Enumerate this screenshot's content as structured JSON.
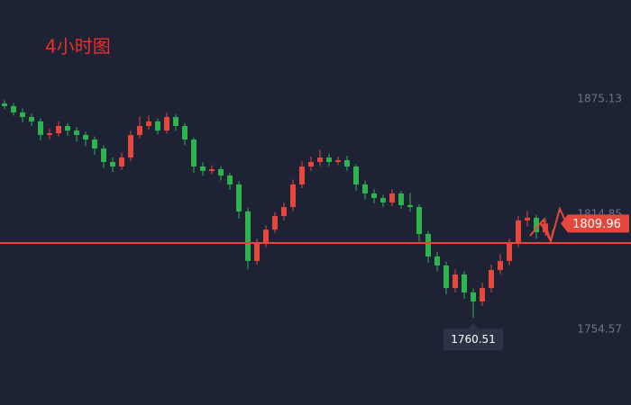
{
  "chart_data": {
    "type": "candlestick",
    "title": "4小时图",
    "open": [
      1872.8,
      1871.4,
      1868.1,
      1865.7,
      1863.4,
      1856.3,
      1857.2,
      1861.0,
      1858.6,
      1856.3,
      1853.9,
      1849.2,
      1842.2,
      1839.8,
      1844.5,
      1856.3,
      1861.0,
      1863.4,
      1858.6,
      1865.7,
      1861.0,
      1853.9,
      1839.8,
      1837.5,
      1838.4,
      1835.1,
      1830.4,
      1816.3,
      1790.4,
      1799.8,
      1806.8,
      1813.9,
      1818.6,
      1830.4,
      1839.8,
      1842.2,
      1844.5,
      1842.2,
      1843.1,
      1839.8,
      1830.4,
      1825.7,
      1823.3,
      1821.0,
      1825.7,
      1819.6,
      1818.6,
      1804.5,
      1792.7,
      1788.0,
      1776.2,
      1783.3,
      1773.9,
      1769.2,
      1776.2,
      1785.6,
      1790.4,
      1799.8,
      1811.6,
      1813.0,
      1805.4
    ],
    "high": [
      1874.5,
      1873.0,
      1870.2,
      1867.5,
      1865.0,
      1859.5,
      1863.5,
      1862.5,
      1860.5,
      1858.0,
      1855.5,
      1851.0,
      1844.5,
      1847.0,
      1858.5,
      1866.0,
      1866.5,
      1865.0,
      1868.0,
      1867.0,
      1862.5,
      1855.0,
      1842.0,
      1840.5,
      1840.0,
      1836.5,
      1832.0,
      1818.0,
      1802.0,
      1809.0,
      1816.0,
      1821.0,
      1833.0,
      1842.5,
      1845.0,
      1848.5,
      1846.5,
      1845.0,
      1845.5,
      1841.0,
      1832.5,
      1828.0,
      1825.0,
      1828.0,
      1827.0,
      1826.0,
      1820.0,
      1806.0,
      1795.0,
      1790.0,
      1786.0,
      1785.0,
      1776.0,
      1779.0,
      1788.5,
      1794.0,
      1802.0,
      1814.0,
      1816.5,
      1814.5,
      1813.0
    ],
    "low": [
      1869.8,
      1866.5,
      1863.0,
      1861.0,
      1853.5,
      1854.0,
      1855.5,
      1856.0,
      1853.0,
      1850.5,
      1846.0,
      1839.0,
      1837.0,
      1838.0,
      1842.5,
      1854.5,
      1859.0,
      1856.5,
      1857.0,
      1858.5,
      1851.0,
      1836.5,
      1835.0,
      1836.0,
      1832.5,
      1827.5,
      1812.5,
      1786.0,
      1788.5,
      1797.5,
      1805.0,
      1811.5,
      1816.5,
      1828.5,
      1837.5,
      1840.0,
      1840.0,
      1840.5,
      1837.5,
      1827.0,
      1822.5,
      1820.5,
      1818.5,
      1819.0,
      1817.5,
      1816.0,
      1800.5,
      1789.5,
      1785.0,
      1773.0,
      1774.0,
      1770.5,
      1760.51,
      1767.0,
      1774.0,
      1783.5,
      1788.0,
      1797.5,
      1808.5,
      1802.0,
      1803.5
    ],
    "close": [
      1871.4,
      1868.1,
      1865.7,
      1863.4,
      1856.3,
      1857.2,
      1861.0,
      1858.6,
      1856.3,
      1853.9,
      1849.2,
      1842.2,
      1839.8,
      1844.5,
      1856.3,
      1861.0,
      1863.4,
      1858.6,
      1865.7,
      1861.0,
      1853.9,
      1839.8,
      1837.5,
      1838.4,
      1835.1,
      1830.4,
      1816.3,
      1790.4,
      1799.8,
      1806.8,
      1813.9,
      1818.6,
      1830.4,
      1839.8,
      1842.2,
      1844.5,
      1842.2,
      1843.1,
      1839.8,
      1830.4,
      1825.7,
      1823.3,
      1821.0,
      1825.7,
      1819.6,
      1818.6,
      1804.5,
      1792.7,
      1788.0,
      1776.2,
      1783.3,
      1773.9,
      1769.2,
      1776.2,
      1785.6,
      1790.4,
      1799.8,
      1811.6,
      1813.0,
      1805.4,
      1809.96
    ],
    "up_color": "#e5473c",
    "down_color": "#2fb34e",
    "reference_line": 1799.78,
    "reference_color": "#e5473c",
    "ylim": [
      1715.01,
      1926.93
    ],
    "yticks": [
      1875.13,
      1814.85,
      1754.57
    ]
  }
}
